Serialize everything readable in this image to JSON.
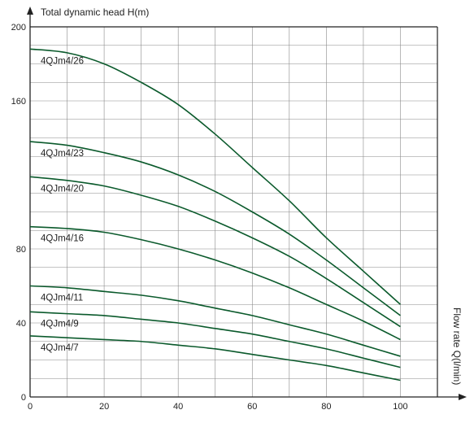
{
  "chart_data": {
    "type": "line",
    "title": "",
    "ylabel": "Total dynamic head H(m)",
    "xlabel": "Flow rate Q(l/min)",
    "xlim": [
      0,
      110
    ],
    "ylim": [
      0,
      200
    ],
    "x_ticks": [
      "0",
      "20",
      "40",
      "60",
      "80",
      "100"
    ],
    "y_ticks": [
      "0",
      "40",
      "80",
      "160",
      "200"
    ],
    "grid": true,
    "line_color": "#0b5a2c",
    "series": [
      {
        "name": "4QJm4/26",
        "x": [
          0,
          10,
          20,
          30,
          40,
          50,
          60,
          70,
          80,
          90,
          100
        ],
        "y": [
          188,
          186,
          180,
          170,
          158,
          142,
          124,
          106,
          86,
          68,
          50
        ]
      },
      {
        "name": "4QJm4/23",
        "x": [
          0,
          10,
          20,
          30,
          40,
          50,
          60,
          70,
          80,
          90,
          100
        ],
        "y": [
          138,
          136,
          132,
          127,
          120,
          111,
          100,
          88,
          74,
          59,
          44
        ]
      },
      {
        "name": "4QJm4/20",
        "x": [
          0,
          10,
          20,
          30,
          40,
          50,
          60,
          70,
          80,
          90,
          100
        ],
        "y": [
          119,
          117,
          114,
          109,
          103,
          95,
          86,
          76,
          64,
          51,
          38
        ]
      },
      {
        "name": "4QJm4/16",
        "x": [
          0,
          10,
          20,
          30,
          40,
          50,
          60,
          70,
          80,
          90,
          100
        ],
        "y": [
          92,
          91,
          89,
          85,
          80,
          74,
          67,
          59,
          50,
          41,
          31
        ]
      },
      {
        "name": "4QJm4/11",
        "x": [
          0,
          10,
          20,
          30,
          40,
          50,
          60,
          70,
          80,
          90,
          100
        ],
        "y": [
          60,
          59,
          57,
          55,
          52,
          48,
          44,
          39,
          34,
          28,
          22
        ]
      },
      {
        "name": "4QJm4/9",
        "x": [
          0,
          10,
          20,
          30,
          40,
          50,
          60,
          70,
          80,
          90,
          100
        ],
        "y": [
          46,
          45,
          44,
          42,
          40,
          37,
          34,
          30,
          26,
          21,
          16
        ]
      },
      {
        "name": "4QJm4/7",
        "x": [
          0,
          10,
          20,
          30,
          40,
          50,
          60,
          70,
          80,
          90,
          100
        ],
        "y": [
          33,
          32,
          31,
          30,
          28,
          26,
          23,
          20,
          17,
          13,
          9
        ]
      }
    ]
  }
}
